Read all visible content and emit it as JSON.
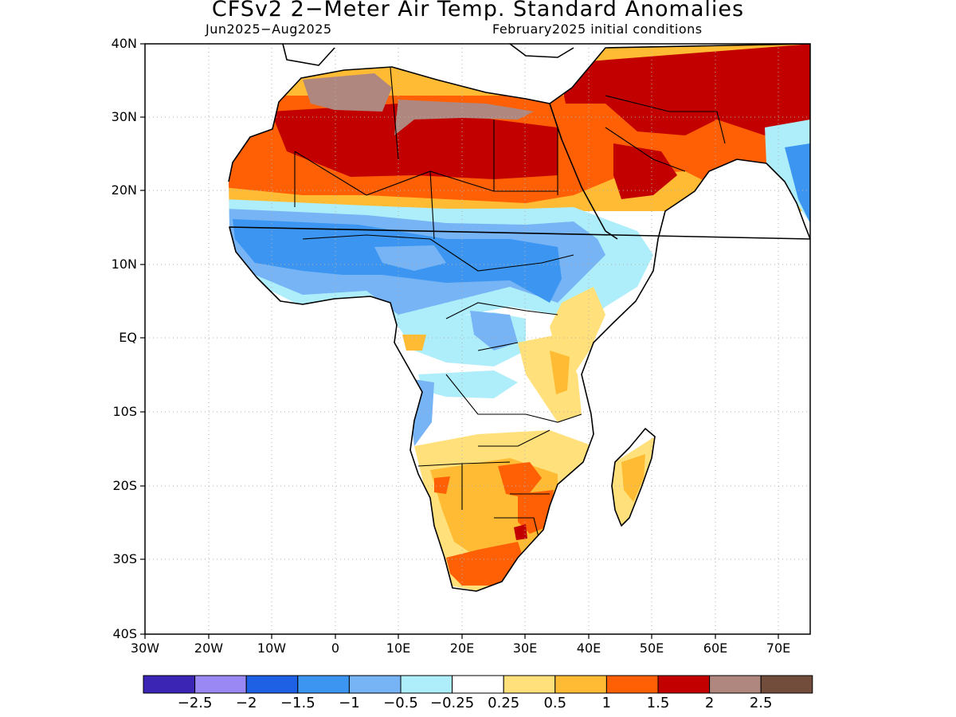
{
  "title": "CFSv2 2−Meter Air Temp. Standard Anomalies",
  "subtitle_left": "Jun2025−Aug2025",
  "subtitle_right": "February2025 initial conditions",
  "lat_labels": [
    "40N",
    "30N",
    "20N",
    "10N",
    "EQ",
    "10S",
    "20S",
    "30S",
    "40S"
  ],
  "lon_labels": [
    "30W",
    "20W",
    "10W",
    "0",
    "10E",
    "20E",
    "30E",
    "40E",
    "50E",
    "60E",
    "70E"
  ],
  "colorbar": {
    "colors": [
      "#3a25b4",
      "#9a88f5",
      "#1f61e4",
      "#3c96f1",
      "#76b4f6",
      "#aeeefa",
      "#ffffff",
      "#ffe07a",
      "#ffbb33",
      "#ff6006",
      "#c20000",
      "#af877e",
      "#734d3c"
    ],
    "labels": [
      "−2.5",
      "−2",
      "−1.5",
      "−1",
      "−0.5",
      "−0.25",
      "0.25",
      "0.5",
      "1",
      "1.5",
      "2",
      "2.5"
    ]
  }
}
